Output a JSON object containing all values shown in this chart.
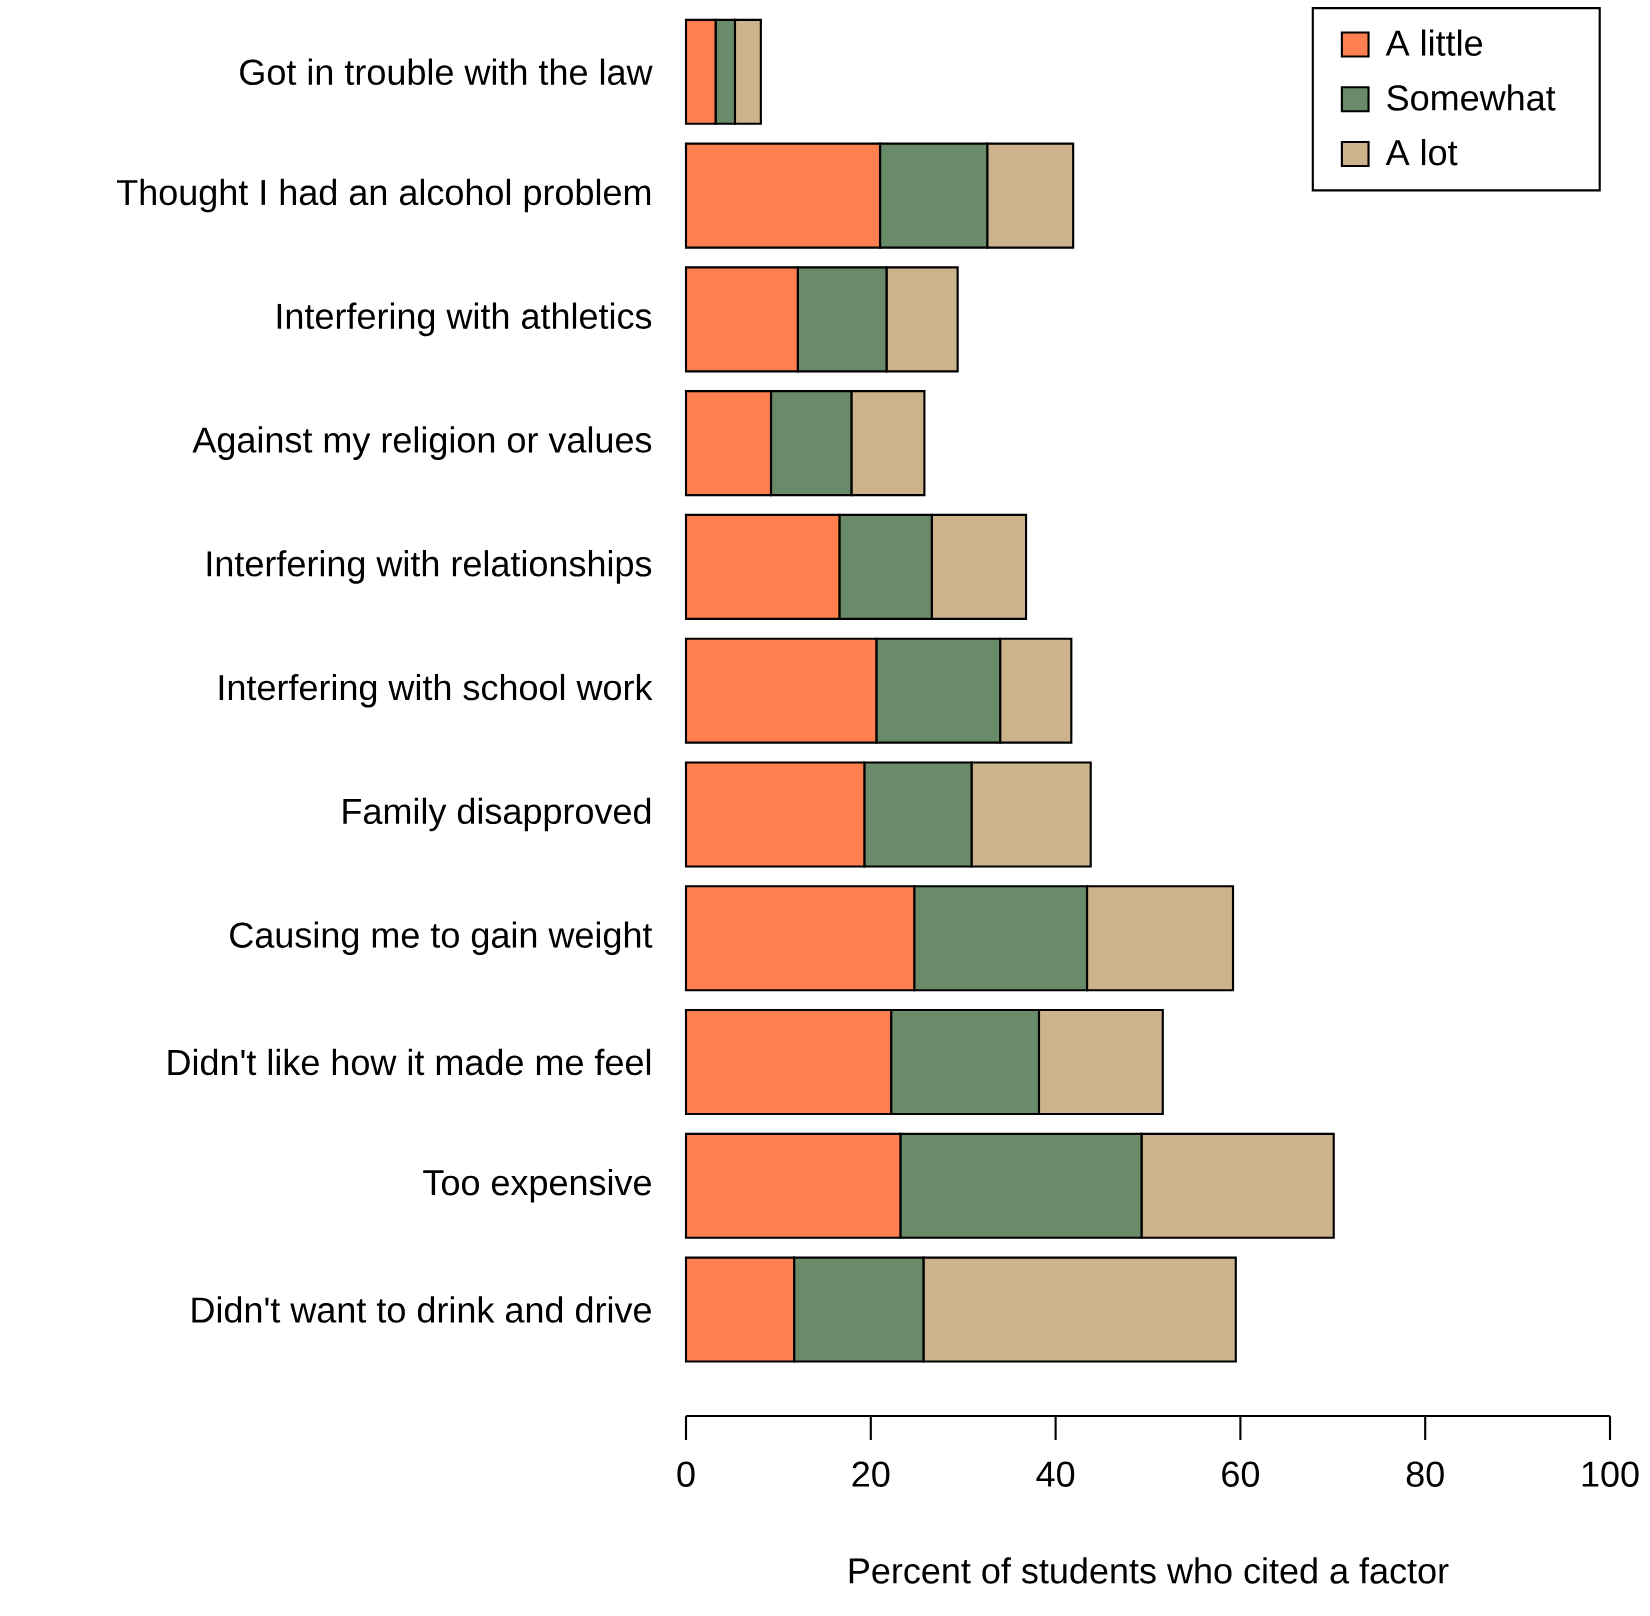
{
  "chart_data": {
    "type": "bar",
    "orientation": "horizontal",
    "stacked": true,
    "xlabel": "Percent of students who cited a factor",
    "categories": [
      "Got in trouble with the law",
      "Thought I had an alcohol problem",
      "Interfering with athletics",
      "Against my religion or values",
      "Interfering with relationships",
      "Interfering with school work",
      "Family disapproved",
      "Causing me to gain weight",
      "Didn't like how it made me feel",
      "Too expensive",
      "Didn't want to drink and drive"
    ],
    "series": [
      {
        "name": "A little",
        "color": "#ff7f50",
        "values": [
          3.2,
          21.0,
          12.1,
          9.2,
          16.6,
          20.6,
          19.3,
          24.7,
          22.2,
          23.2,
          11.7
        ]
      },
      {
        "name": "Somewhat",
        "color": "#698b69",
        "values": [
          2.1,
          11.6,
          9.6,
          8.7,
          10.0,
          13.4,
          11.6,
          18.7,
          16.0,
          26.1,
          14.0
        ]
      },
      {
        "name": "A lot",
        "color": "#cdb38b",
        "values": [
          2.8,
          9.3,
          7.7,
          7.9,
          10.2,
          7.7,
          12.9,
          15.8,
          13.4,
          20.8,
          33.8
        ]
      }
    ],
    "xlim": [
      0,
      100
    ],
    "xticks": [
      0,
      20,
      40,
      60,
      80,
      100
    ],
    "legend": "top right"
  }
}
